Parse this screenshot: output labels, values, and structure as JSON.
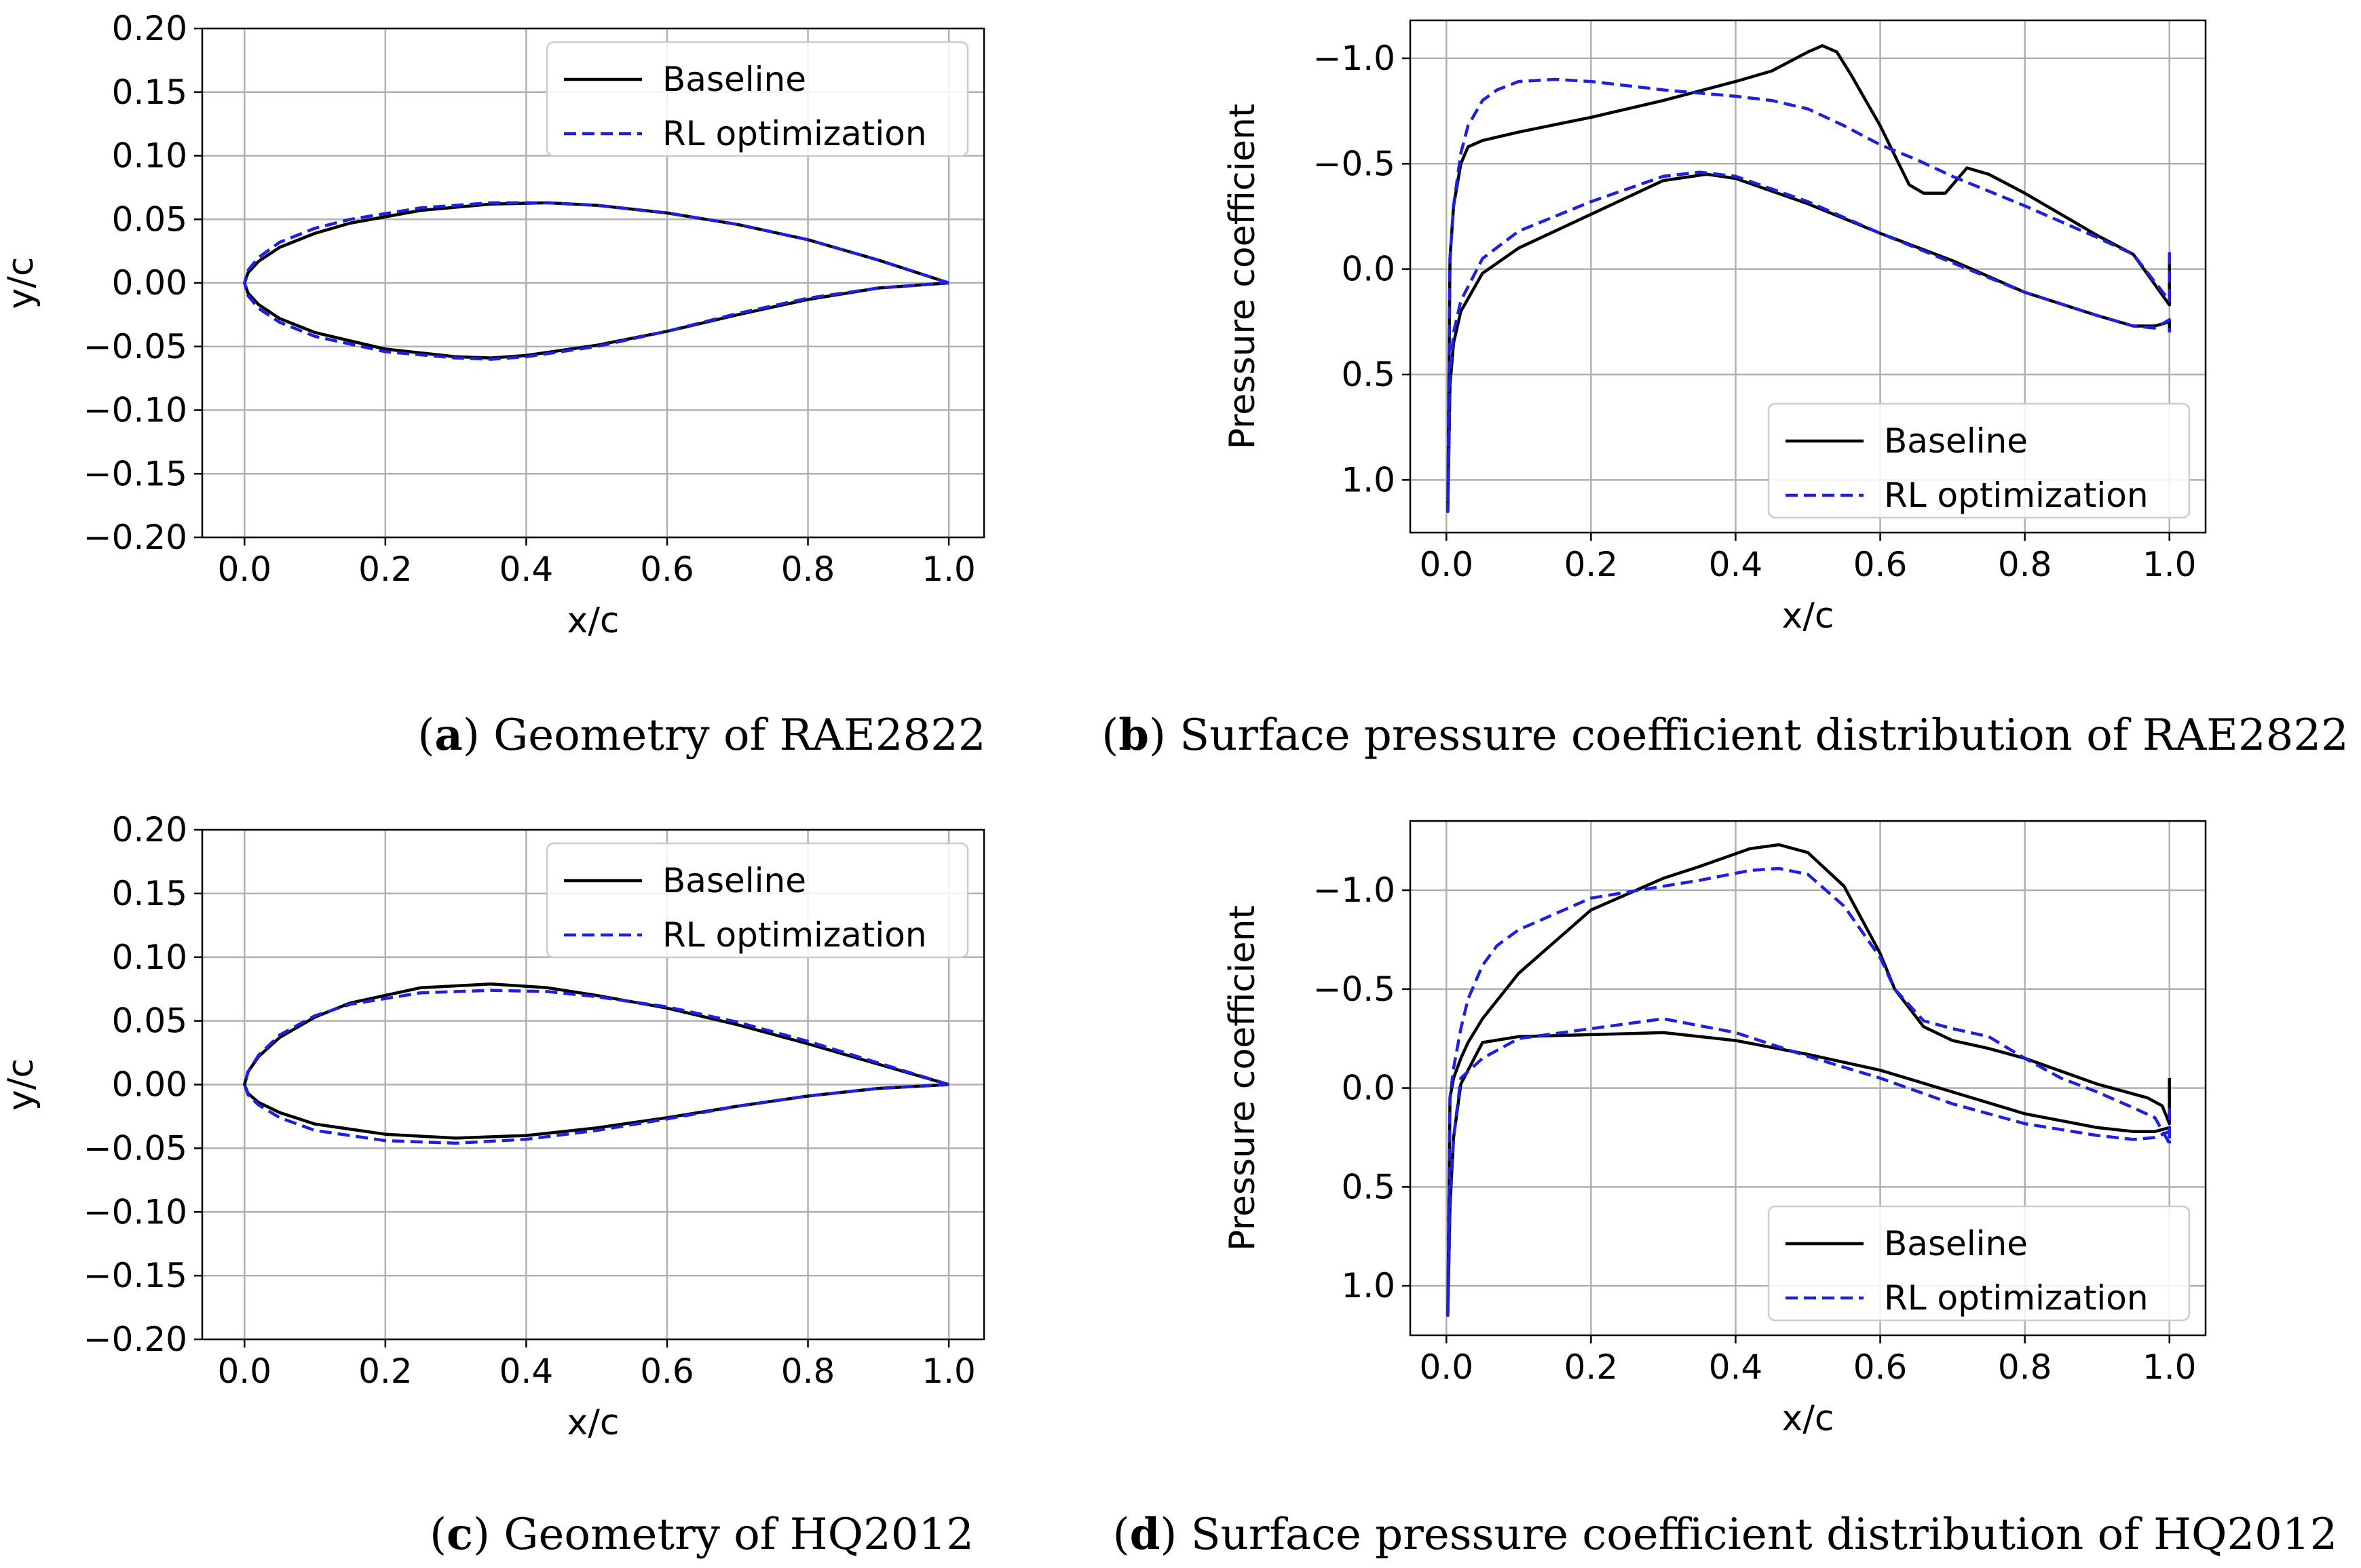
{
  "colors": {
    "baseline": "#000000",
    "rl": "#1f1fe0",
    "grid": "#b0b0b0",
    "frame": "#000000",
    "legend_border": "#cccccc"
  },
  "legend": {
    "baseline": "Baseline",
    "rl": "RL optimization"
  },
  "panels": [
    {
      "caption": {
        "letter": "a",
        "text": "Geometry of RAE2822"
      }
    },
    {
      "caption": {
        "letter": "b",
        "text": "Surface pressure coefficient distribution of RAE2822"
      }
    },
    {
      "caption": {
        "letter": "c",
        "text": "Geometry of HQ2012"
      }
    },
    {
      "caption": {
        "letter": "d",
        "text": "Surface pressure coefficient distribution of HQ2012"
      }
    }
  ],
  "chart_data": [
    {
      "type": "line",
      "title": "Geometry of RAE2822",
      "xlabel": "x/c",
      "ylabel": "y/c",
      "xlim": [
        -0.06,
        1.05
      ],
      "ylim": [
        -0.2,
        0.2
      ],
      "x_ticks": [
        0.0,
        0.2,
        0.4,
        0.6,
        0.8,
        1.0
      ],
      "x_tick_labels": [
        "0.0",
        "0.2",
        "0.4",
        "0.6",
        "0.8",
        "1.0"
      ],
      "y_ticks": [
        0.2,
        0.15,
        0.1,
        0.05,
        0.0,
        -0.05,
        -0.1,
        -0.15,
        -0.2
      ],
      "y_tick_labels": [
        "0.20",
        "0.15",
        "0.10",
        "0.05",
        "0.00",
        "−0.05",
        "−0.10",
        "−0.15",
        "−0.20"
      ],
      "legend_position": "top-right",
      "series": [
        {
          "name": "Baseline",
          "style": "solid",
          "x": [
            1.0,
            0.9,
            0.8,
            0.7,
            0.6,
            0.5,
            0.43,
            0.35,
            0.25,
            0.15,
            0.1,
            0.05,
            0.02,
            0.005,
            0.0,
            0.005,
            0.02,
            0.05,
            0.1,
            0.2,
            0.3,
            0.35,
            0.4,
            0.5,
            0.6,
            0.7,
            0.8,
            0.9,
            1.0
          ],
          "y": [
            0.0,
            0.018,
            0.034,
            0.046,
            0.055,
            0.061,
            0.063,
            0.062,
            0.057,
            0.047,
            0.039,
            0.028,
            0.017,
            0.008,
            0.0,
            -0.008,
            -0.017,
            -0.028,
            -0.039,
            -0.052,
            -0.058,
            -0.059,
            -0.057,
            -0.049,
            -0.038,
            -0.025,
            -0.013,
            -0.004,
            0.0
          ]
        },
        {
          "name": "RL optimization",
          "style": "dashed",
          "x": [
            1.0,
            0.9,
            0.8,
            0.7,
            0.6,
            0.5,
            0.43,
            0.35,
            0.25,
            0.15,
            0.1,
            0.05,
            0.02,
            0.005,
            0.0,
            0.005,
            0.02,
            0.05,
            0.1,
            0.2,
            0.3,
            0.35,
            0.4,
            0.5,
            0.6,
            0.7,
            0.8,
            0.9,
            1.0
          ],
          "y": [
            0.0,
            0.018,
            0.034,
            0.046,
            0.055,
            0.061,
            0.063,
            0.063,
            0.059,
            0.05,
            0.043,
            0.032,
            0.02,
            0.01,
            0.0,
            -0.01,
            -0.02,
            -0.031,
            -0.042,
            -0.054,
            -0.059,
            -0.06,
            -0.058,
            -0.05,
            -0.038,
            -0.024,
            -0.012,
            -0.004,
            0.0
          ]
        }
      ]
    },
    {
      "type": "line",
      "title": "Surface pressure coefficient distribution of RAE2822",
      "xlabel": "x/c",
      "ylabel": "Pressure coefficient",
      "xlim": [
        -0.05,
        1.05
      ],
      "ylim": [
        1.25,
        -1.18
      ],
      "y_inverted": true,
      "x_ticks": [
        0.0,
        0.2,
        0.4,
        0.6,
        0.8,
        1.0
      ],
      "x_tick_labels": [
        "0.0",
        "0.2",
        "0.4",
        "0.6",
        "0.8",
        "1.0"
      ],
      "y_ticks": [
        -1.0,
        -0.5,
        0.0,
        0.5,
        1.0
      ],
      "y_tick_labels": [
        "−1.0",
        "−0.5",
        "0.0",
        "0.5",
        "1.0"
      ],
      "legend_position": "bottom-right",
      "series": [
        {
          "name": "Baseline",
          "style": "solid",
          "x": [
            1.0,
            1.0,
            0.95,
            0.9,
            0.85,
            0.8,
            0.75,
            0.72,
            0.69,
            0.66,
            0.64,
            0.6,
            0.56,
            0.54,
            0.52,
            0.5,
            0.45,
            0.4,
            0.3,
            0.2,
            0.1,
            0.05,
            0.03,
            0.02,
            0.01,
            0.005,
            0.002,
            0.005,
            0.01,
            0.02,
            0.05,
            0.1,
            0.2,
            0.3,
            0.36,
            0.4,
            0.5,
            0.6,
            0.7,
            0.8,
            0.9,
            0.95,
            0.98,
            1.0,
            1.0
          ],
          "y": [
            -0.03,
            0.17,
            -0.07,
            -0.16,
            -0.26,
            -0.36,
            -0.45,
            -0.48,
            -0.36,
            -0.36,
            -0.4,
            -0.68,
            -0.92,
            -1.03,
            -1.06,
            -1.03,
            -0.94,
            -0.89,
            -0.8,
            -0.72,
            -0.65,
            -0.61,
            -0.58,
            -0.5,
            -0.3,
            -0.05,
            1.15,
            0.55,
            0.35,
            0.2,
            0.02,
            -0.1,
            -0.26,
            -0.42,
            -0.45,
            -0.43,
            -0.31,
            -0.17,
            -0.04,
            0.11,
            0.22,
            0.27,
            0.27,
            0.25,
            0.3
          ]
        },
        {
          "name": "RL optimization",
          "style": "dashed",
          "x": [
            1.0,
            1.0,
            0.95,
            0.9,
            0.8,
            0.7,
            0.65,
            0.6,
            0.55,
            0.5,
            0.45,
            0.4,
            0.3,
            0.2,
            0.15,
            0.1,
            0.07,
            0.05,
            0.03,
            0.02,
            0.01,
            0.005,
            0.002,
            0.005,
            0.01,
            0.02,
            0.05,
            0.1,
            0.2,
            0.3,
            0.35,
            0.4,
            0.5,
            0.6,
            0.7,
            0.8,
            0.9,
            0.95,
            0.98,
            1.0,
            1.0
          ],
          "y": [
            -0.08,
            0.15,
            -0.07,
            -0.15,
            -0.3,
            -0.44,
            -0.52,
            -0.59,
            -0.68,
            -0.76,
            -0.8,
            -0.82,
            -0.85,
            -0.89,
            -0.9,
            -0.89,
            -0.85,
            -0.8,
            -0.68,
            -0.55,
            -0.3,
            -0.05,
            1.15,
            0.5,
            0.3,
            0.15,
            -0.05,
            -0.18,
            -0.32,
            -0.44,
            -0.46,
            -0.44,
            -0.32,
            -0.17,
            -0.03,
            0.11,
            0.22,
            0.27,
            0.28,
            0.24,
            0.3
          ]
        }
      ]
    },
    {
      "type": "line",
      "title": "Geometry of HQ2012",
      "xlabel": "x/c",
      "ylabel": "y/c",
      "xlim": [
        -0.06,
        1.05
      ],
      "ylim": [
        -0.2,
        0.2
      ],
      "x_ticks": [
        0.0,
        0.2,
        0.4,
        0.6,
        0.8,
        1.0
      ],
      "x_tick_labels": [
        "0.0",
        "0.2",
        "0.4",
        "0.6",
        "0.8",
        "1.0"
      ],
      "y_ticks": [
        0.2,
        0.15,
        0.1,
        0.05,
        0.0,
        -0.05,
        -0.1,
        -0.15,
        -0.2
      ],
      "y_tick_labels": [
        "0.20",
        "0.15",
        "0.10",
        "0.05",
        "0.00",
        "−0.05",
        "−0.10",
        "−0.15",
        "−0.20"
      ],
      "legend_position": "top-right",
      "series": [
        {
          "name": "Baseline",
          "style": "solid",
          "x": [
            1.0,
            0.9,
            0.8,
            0.7,
            0.6,
            0.5,
            0.43,
            0.35,
            0.25,
            0.15,
            0.1,
            0.05,
            0.02,
            0.005,
            0.0,
            0.005,
            0.02,
            0.05,
            0.1,
            0.2,
            0.3,
            0.4,
            0.5,
            0.6,
            0.7,
            0.8,
            0.9,
            1.0
          ],
          "y": [
            0.0,
            0.016,
            0.032,
            0.047,
            0.06,
            0.07,
            0.076,
            0.079,
            0.076,
            0.064,
            0.053,
            0.037,
            0.022,
            0.01,
            0.0,
            -0.007,
            -0.014,
            -0.022,
            -0.031,
            -0.039,
            -0.042,
            -0.04,
            -0.034,
            -0.026,
            -0.017,
            -0.009,
            -0.003,
            0.0
          ]
        },
        {
          "name": "RL optimization",
          "style": "dashed",
          "x": [
            1.0,
            0.9,
            0.8,
            0.7,
            0.6,
            0.5,
            0.43,
            0.35,
            0.25,
            0.15,
            0.1,
            0.05,
            0.02,
            0.005,
            0.0,
            0.005,
            0.02,
            0.05,
            0.1,
            0.2,
            0.3,
            0.4,
            0.5,
            0.6,
            0.7,
            0.8,
            0.9,
            1.0
          ],
          "y": [
            0.0,
            0.017,
            0.034,
            0.049,
            0.061,
            0.069,
            0.073,
            0.074,
            0.072,
            0.063,
            0.054,
            0.039,
            0.023,
            0.01,
            0.0,
            -0.008,
            -0.016,
            -0.026,
            -0.036,
            -0.044,
            -0.046,
            -0.043,
            -0.036,
            -0.027,
            -0.017,
            -0.009,
            -0.003,
            0.0
          ]
        }
      ]
    },
    {
      "type": "line",
      "title": "Surface pressure coefficient distribution of HQ2012",
      "xlabel": "x/c",
      "ylabel": "Pressure coefficient",
      "xlim": [
        -0.05,
        1.05
      ],
      "ylim": [
        1.25,
        -1.35
      ],
      "y_inverted": true,
      "x_ticks": [
        0.0,
        0.2,
        0.4,
        0.6,
        0.8,
        1.0
      ],
      "x_tick_labels": [
        "0.0",
        "0.2",
        "0.4",
        "0.6",
        "0.8",
        "1.0"
      ],
      "y_ticks": [
        -1.0,
        -0.5,
        0.0,
        0.5,
        1.0
      ],
      "y_tick_labels": [
        "−1.0",
        "−0.5",
        "0.0",
        "0.5",
        "1.0"
      ],
      "legend_position": "bottom-right",
      "series": [
        {
          "name": "Baseline",
          "style": "solid",
          "x": [
            1.0,
            1.0,
            0.99,
            0.97,
            0.95,
            0.9,
            0.8,
            0.75,
            0.7,
            0.66,
            0.62,
            0.6,
            0.55,
            0.5,
            0.46,
            0.42,
            0.35,
            0.3,
            0.2,
            0.1,
            0.05,
            0.03,
            0.02,
            0.01,
            0.005,
            0.002,
            0.005,
            0.01,
            0.02,
            0.05,
            0.1,
            0.2,
            0.3,
            0.4,
            0.5,
            0.6,
            0.7,
            0.8,
            0.9,
            0.95,
            0.98,
            1.0,
            1.0
          ],
          "y": [
            -0.05,
            0.18,
            0.09,
            0.05,
            0.03,
            -0.02,
            -0.15,
            -0.2,
            -0.24,
            -0.31,
            -0.5,
            -0.68,
            -1.02,
            -1.19,
            -1.23,
            -1.21,
            -1.12,
            -1.06,
            -0.9,
            -0.58,
            -0.35,
            -0.23,
            -0.15,
            -0.05,
            0.05,
            1.15,
            0.6,
            0.25,
            -0.02,
            -0.23,
            -0.26,
            -0.27,
            -0.28,
            -0.24,
            -0.17,
            -0.09,
            0.02,
            0.13,
            0.2,
            0.22,
            0.22,
            0.2,
            0.25
          ]
        },
        {
          "name": "RL optimization",
          "style": "dashed",
          "x": [
            1.0,
            1.0,
            0.98,
            0.95,
            0.9,
            0.85,
            0.8,
            0.75,
            0.7,
            0.66,
            0.62,
            0.6,
            0.55,
            0.5,
            0.46,
            0.42,
            0.35,
            0.3,
            0.2,
            0.1,
            0.07,
            0.05,
            0.03,
            0.02,
            0.01,
            0.005,
            0.002,
            0.005,
            0.01,
            0.02,
            0.05,
            0.1,
            0.2,
            0.3,
            0.4,
            0.5,
            0.6,
            0.7,
            0.8,
            0.9,
            0.95,
            0.98,
            1.0,
            1.0
          ],
          "y": [
            0.1,
            0.28,
            0.15,
            0.1,
            0.02,
            -0.05,
            -0.15,
            -0.26,
            -0.3,
            -0.34,
            -0.5,
            -0.66,
            -0.92,
            -1.08,
            -1.11,
            -1.1,
            -1.05,
            -1.02,
            -0.96,
            -0.8,
            -0.72,
            -0.62,
            -0.45,
            -0.3,
            -0.1,
            0.05,
            1.15,
            0.55,
            0.25,
            -0.05,
            -0.15,
            -0.25,
            -0.3,
            -0.35,
            -0.28,
            -0.16,
            -0.05,
            0.08,
            0.18,
            0.24,
            0.26,
            0.25,
            0.22,
            0.28
          ]
        }
      ]
    }
  ]
}
